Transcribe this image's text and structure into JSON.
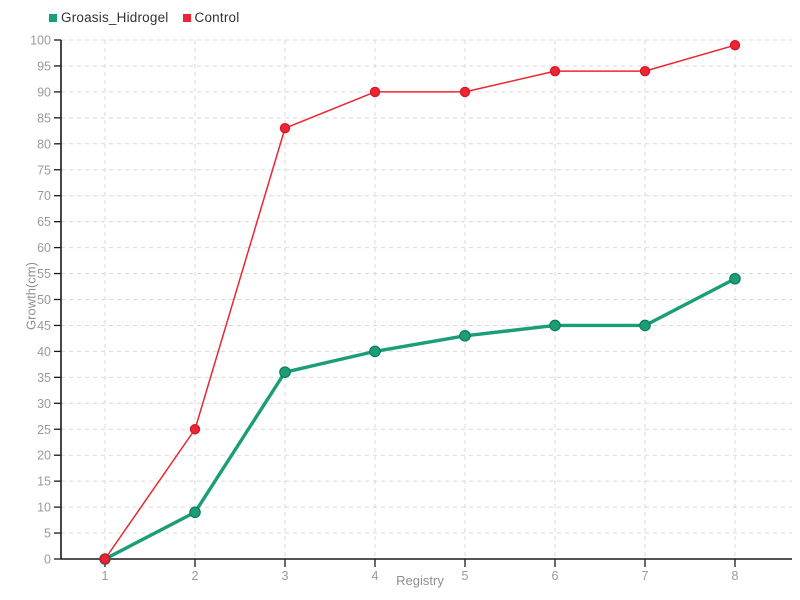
{
  "legend": {
    "items": [
      {
        "label": "Groasis_Hidrogel",
        "color": "#1b9e77"
      },
      {
        "label": "Control",
        "color": "#ed2432"
      }
    ]
  },
  "chart_data": {
    "type": "line",
    "title": "",
    "x": [
      1,
      2,
      3,
      4,
      5,
      6,
      7,
      8
    ],
    "series": [
      {
        "name": "Groasis_Hidrogel",
        "color": "#1b9e77",
        "marker_edge_color": "#0e7a5c",
        "line_width": 3.4,
        "marker_radius": 5.2,
        "values": [
          0,
          9,
          36,
          40,
          43,
          45,
          45,
          54
        ]
      },
      {
        "name": "Control",
        "color": "#ed2432",
        "marker_edge_color": "#d41527",
        "line_width": 1.5,
        "marker_radius": 4.6,
        "values": [
          0,
          25,
          83,
          90,
          90,
          94,
          94,
          99
        ]
      }
    ],
    "xlabel": "Registry",
    "ylabel": "Growth(cm)",
    "xlim": [
      1,
      8
    ],
    "ylim": [
      0,
      100
    ],
    "ytick_step": 5,
    "grid": true,
    "grid_style": "dashed",
    "legend_position": "top-left",
    "colors": {
      "background": "#ffffff",
      "axis": "#1a1a1a",
      "grid": "#d9d9d9",
      "tick_label": "#9a9a9a",
      "axis_label": "#8f8f8f",
      "legend_text": "#333333"
    }
  }
}
